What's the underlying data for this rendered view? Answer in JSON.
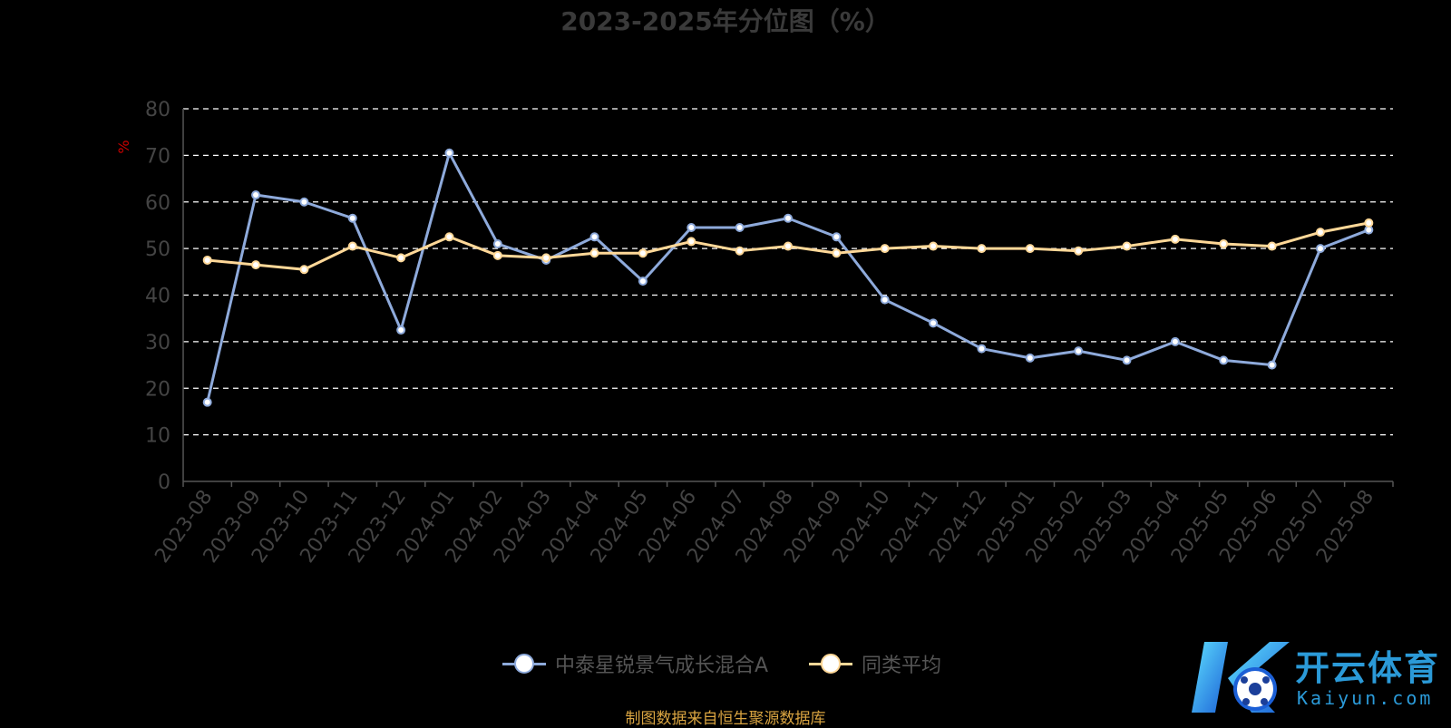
{
  "chart_data": {
    "type": "line",
    "title": "2023-2025年分位图（%）",
    "ylabel": "%",
    "ylim": [
      0,
      80
    ],
    "yticks": [
      0,
      10,
      20,
      30,
      40,
      50,
      60,
      70,
      80
    ],
    "grid": true,
    "legend_position": "bottom-center",
    "categories": [
      "2023-08",
      "2023-09",
      "2023-10",
      "2023-11",
      "2023-12",
      "2024-01",
      "2024-02",
      "2024-03",
      "2024-04",
      "2024-05",
      "2024-06",
      "2024-07",
      "2024-08",
      "2024-09",
      "2024-10",
      "2024-11",
      "2024-12",
      "2025-01",
      "2025-02",
      "2025-03",
      "2025-04",
      "2025-05",
      "2025-06",
      "2025-07",
      "2025-08"
    ],
    "series": [
      {
        "name": "中泰星锐景气成长混合A",
        "color": "#8eaadb",
        "values": [
          17,
          61.5,
          60,
          56.5,
          32.5,
          70.5,
          51,
          47.5,
          52.5,
          43,
          54.5,
          54.5,
          56.5,
          52.5,
          39,
          34,
          28.5,
          26.5,
          28,
          26,
          30,
          26,
          25,
          50,
          54
        ]
      },
      {
        "name": "同类平均",
        "color": "#ffd898",
        "values": [
          47.5,
          46.5,
          45.5,
          50.5,
          48,
          52.5,
          48.5,
          48,
          49,
          49,
          51.5,
          49.5,
          50.5,
          49,
          50,
          50.5,
          50,
          50,
          49.5,
          50.5,
          52,
          51,
          50.5,
          53.5,
          55.5
        ]
      }
    ]
  },
  "source_note": "制图数据来自恒生聚源数据库",
  "watermark": {
    "text": "开云体育",
    "sub": "Kaiyun.com"
  },
  "colors": {
    "axis": "#555555",
    "grid": "#ffffff",
    "ylabel": "#cc0000",
    "tick_label": "#444444"
  }
}
